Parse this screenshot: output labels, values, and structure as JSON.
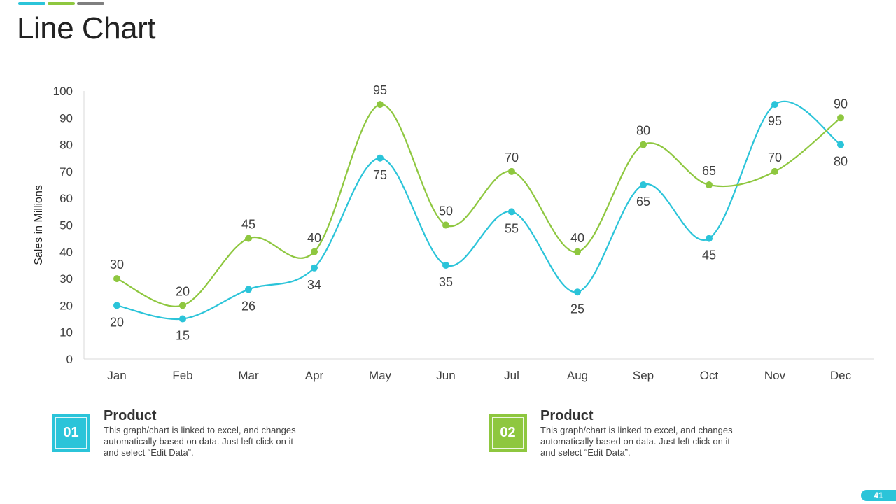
{
  "page": {
    "title": "Line Chart",
    "slide_number": "41"
  },
  "colors": {
    "accent_cyan": "#2bc4d9",
    "accent_green": "#8ec73f",
    "accent_gray": "#7f7f7f",
    "axis": "#d9d9d9",
    "label_text": "#404040"
  },
  "chart_data": {
    "type": "line",
    "title": "Line Chart",
    "xlabel": "",
    "ylabel": "Sales in Millions",
    "ylim": [
      0,
      100
    ],
    "yticks": [
      0,
      10,
      20,
      30,
      40,
      50,
      60,
      70,
      80,
      90,
      100
    ],
    "grid": false,
    "smooth": true,
    "categories": [
      "Jan",
      "Feb",
      "Mar",
      "Apr",
      "May",
      "Jun",
      "Jul",
      "Aug",
      "Sep",
      "Oct",
      "Nov",
      "Dec"
    ],
    "series": [
      {
        "name": "Product 01",
        "color": "#2bc4d9",
        "values": [
          20,
          15,
          26,
          34,
          75,
          35,
          55,
          25,
          65,
          45,
          95,
          80
        ],
        "label_position": [
          "below",
          "below",
          "below",
          "below",
          "below",
          "below",
          "below",
          "below",
          "below",
          "below",
          "below",
          "below"
        ]
      },
      {
        "name": "Product 02",
        "color": "#8ec73f",
        "values": [
          30,
          20,
          45,
          40,
          95,
          50,
          70,
          40,
          80,
          65,
          70,
          90
        ],
        "label_position": [
          "above",
          "above",
          "above",
          "above",
          "above",
          "above",
          "above",
          "above",
          "above",
          "above",
          "above",
          "above"
        ]
      }
    ]
  },
  "legend": [
    {
      "number": "01",
      "title": "Product",
      "description": "This graph/chart is linked to excel, and changes automatically based on data. Just left click on it and select “Edit Data”.",
      "color": "#2bc4d9"
    },
    {
      "number": "02",
      "title": "Product",
      "description": "This graph/chart is linked to excel, and changes automatically based on data. Just left click on it and select “Edit Data”.",
      "color": "#8ec73f"
    }
  ]
}
